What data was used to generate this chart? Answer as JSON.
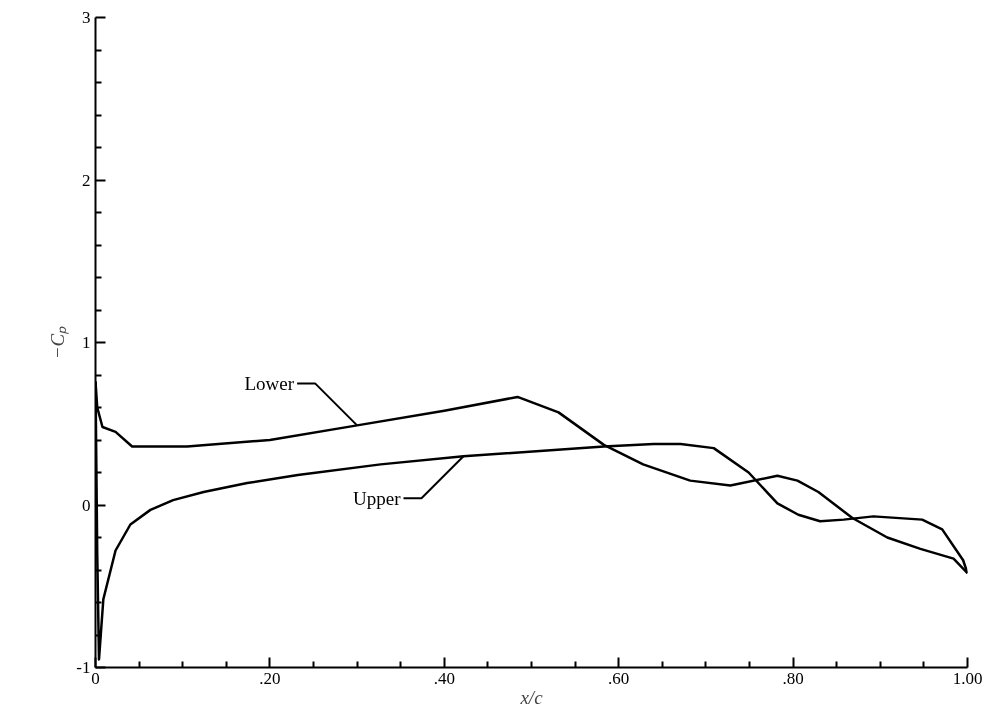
{
  "chart_data": {
    "type": "line",
    "xlabel": "x/c",
    "ylabel": "−Cₚ",
    "xlim": [
      0,
      1.0
    ],
    "ylim": [
      -1,
      3
    ],
    "xticks": [
      0,
      {
        "value": 0.2,
        "label": ".20"
      },
      {
        "value": 0.4,
        "label": ".40"
      },
      {
        "value": 0.6,
        "label": ".60"
      },
      {
        "value": 0.8,
        "label": ".80"
      },
      {
        "value": 1.0,
        "label": "1.00"
      }
    ],
    "yticks": [
      -1,
      0,
      1,
      2,
      3
    ],
    "grid": false,
    "marker": "none",
    "line_style": "solid",
    "series": [
      {
        "color": "#000000",
        "x": [
          0,
          0.002,
          0.008,
          0.023,
          0.042,
          0.083,
          0.105,
          0.2,
          0.3,
          0.4,
          0.484,
          0.531,
          0.583,
          0.628,
          0.682,
          0.728,
          0.782,
          0.805,
          0.829,
          0.868,
          0.908,
          0.946,
          0.984,
          1.0
        ],
        "values": [
          0.76,
          0.6,
          0.48,
          0.45,
          0.36,
          0.36,
          0.36,
          0.4,
          0.49,
          0.58,
          0.665,
          0.57,
          0.37,
          0.25,
          0.15,
          0.12,
          0.18,
          0.15,
          0.08,
          -0.08,
          -0.2,
          -0.27,
          -0.33,
          -0.42
        ]
      },
      {
        "color": "#000000",
        "x": [
          0,
          0.002,
          0.004,
          0.009,
          0.023,
          0.04,
          0.063,
          0.089,
          0.124,
          0.174,
          0.232,
          0.327,
          0.422,
          0.583,
          0.64,
          0.671,
          0.709,
          0.749,
          0.782,
          0.806,
          0.831,
          0.858,
          0.892,
          0.948,
          0.971,
          0.995,
          1.0
        ],
        "values": [
          0.76,
          -0.3,
          -0.95,
          -0.58,
          -0.28,
          -0.12,
          -0.03,
          0.03,
          0.08,
          0.135,
          0.185,
          0.25,
          0.3,
          0.36,
          0.375,
          0.375,
          0.35,
          0.2,
          0.01,
          -0.06,
          -0.1,
          -0.09,
          -0.07,
          -0.09,
          -0.15,
          -0.34,
          -0.42
        ]
      }
    ],
    "annotations": [
      {
        "text": "Lower",
        "x": 0.3,
        "y": 0.49
      },
      {
        "text": "Upper",
        "x": 0.422,
        "y": 0.3
      }
    ]
  }
}
